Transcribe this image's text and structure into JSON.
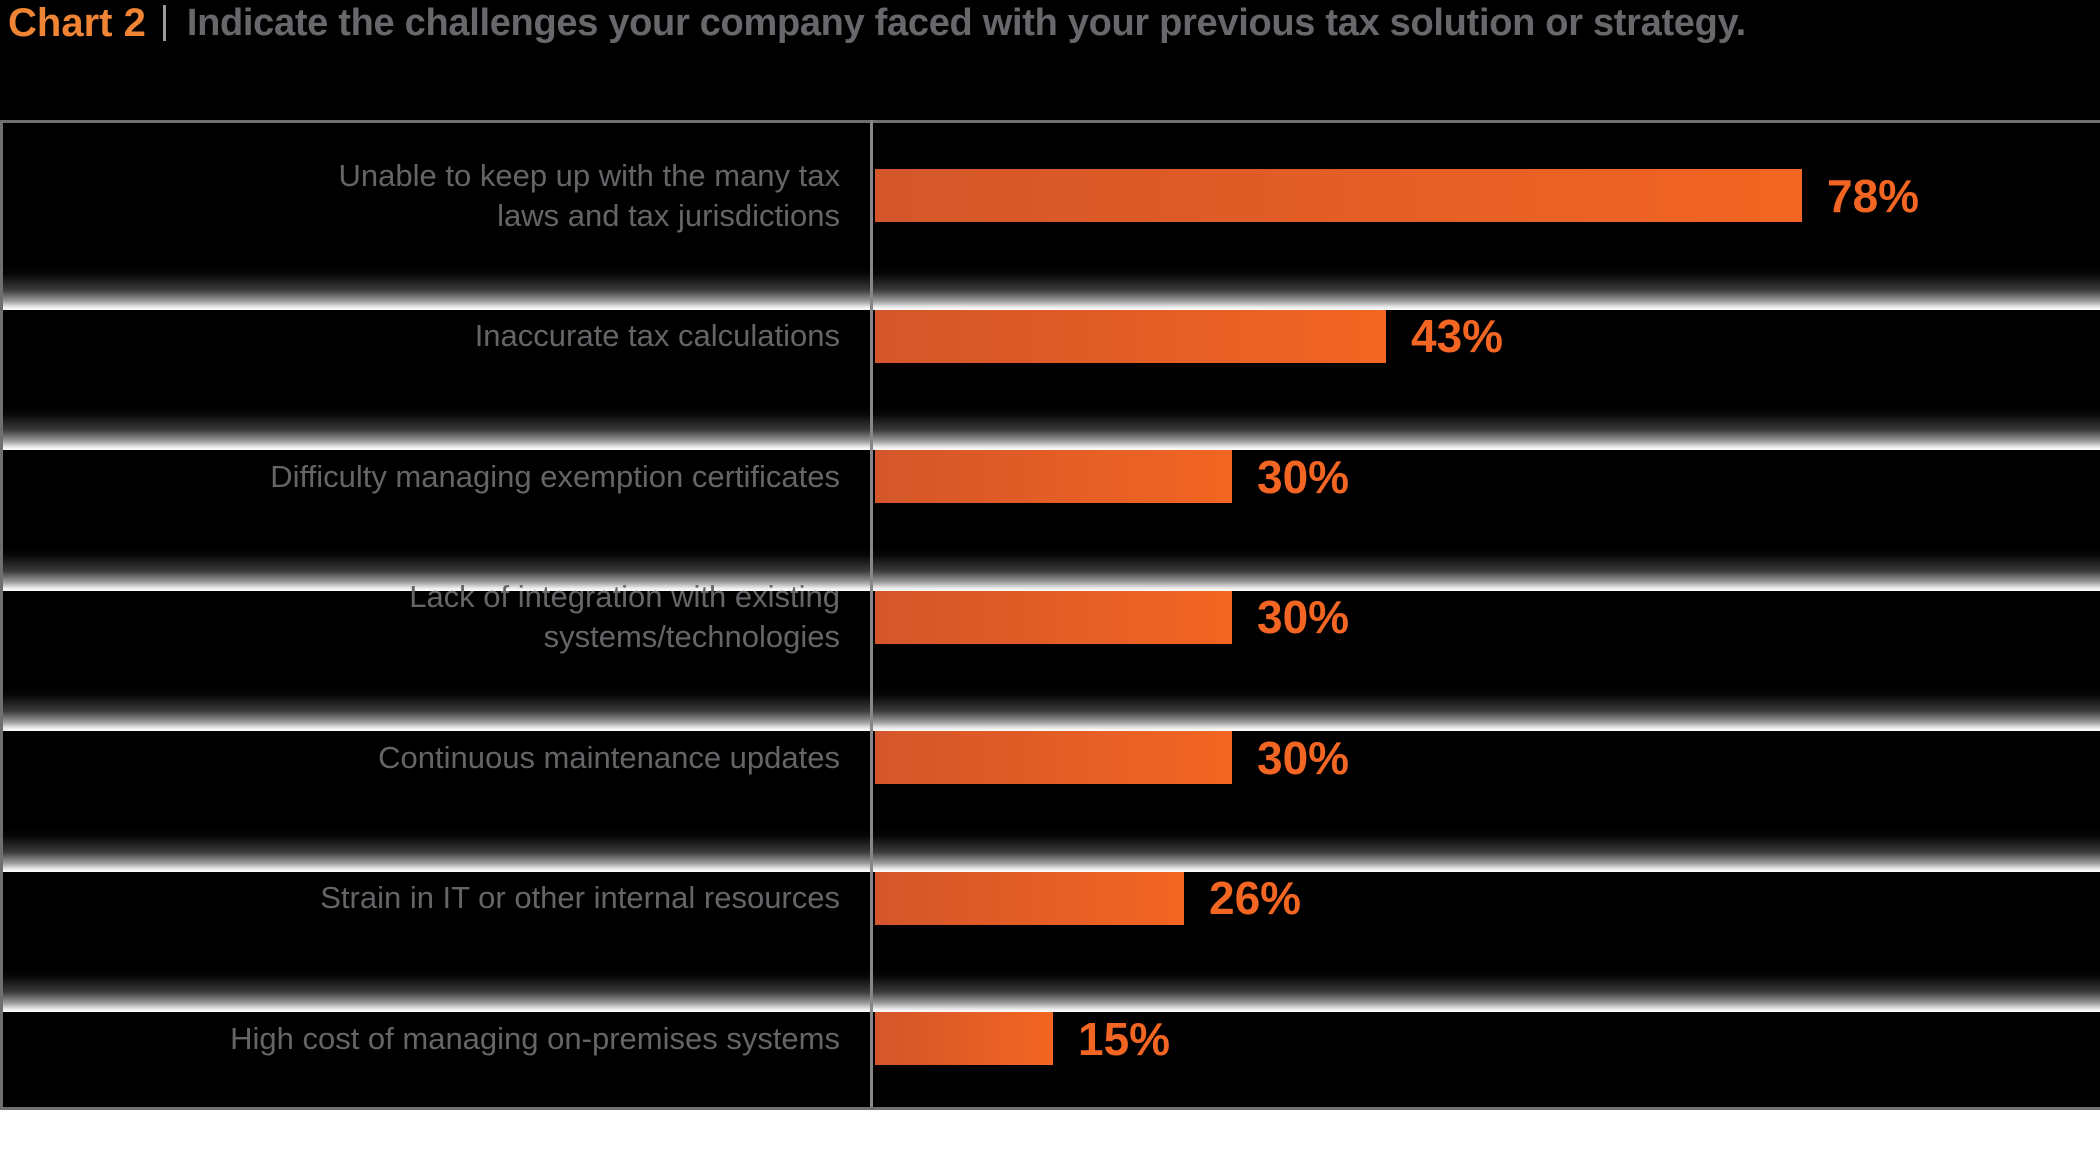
{
  "header": {
    "chart_label": "Chart 2",
    "title": "Indicate the challenges your company faced with your previous tax solution or strategy."
  },
  "chart_data": {
    "type": "bar",
    "orientation": "horizontal",
    "title": "Indicate the challenges your company faced with your previous tax solution or strategy.",
    "categories": [
      "Unable to keep up with the many tax\nlaws and tax jurisdictions",
      "Inaccurate tax calculations",
      "Difficulty managing exemption certificates",
      "Lack of integration with existing\nsystems/technologies",
      "Continuous maintenance updates",
      "Strain in IT or other internal resources",
      "High cost of managing on-premises systems"
    ],
    "values": [
      78,
      43,
      30,
      30,
      30,
      26,
      15
    ],
    "value_labels": [
      "78%",
      "43%",
      "30%",
      "30%",
      "30%",
      "26%",
      "15%"
    ],
    "value_suffix": "%",
    "xlim": [
      0,
      78
    ],
    "grid": "off",
    "legend": "none",
    "colors": {
      "bar_gradient_start": "#d4562a",
      "bar_gradient_end": "#f26522",
      "value_label": "#f26522",
      "category_label": "#646568",
      "title_text": "#67686b",
      "chart_label": "#ee8434",
      "background": "#000000",
      "frame_lines": "#6e6f71"
    }
  }
}
